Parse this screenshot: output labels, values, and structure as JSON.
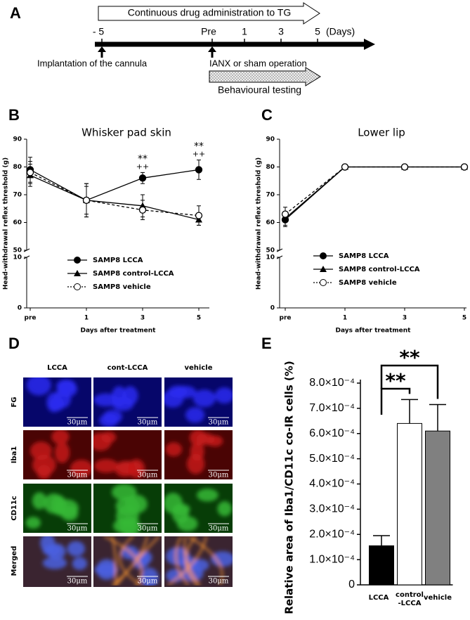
{
  "timeline": {
    "panel": "A",
    "top_arrow": "Continuous drug administration to TG",
    "ticks": [
      "- 5",
      "Pre",
      "1",
      "3",
      "5"
    ],
    "unit": "(Days)",
    "events": [
      "Implantation of the cannula",
      "IANX or sham operation"
    ],
    "bottom_arrow": "Behavioural testing"
  },
  "micrographs": {
    "panel": "D",
    "columns": [
      "LCCA",
      "cont-LCCA",
      "vehicle"
    ],
    "rows": [
      "FG",
      "Iba1",
      "CD11c",
      "Merged"
    ],
    "scale_bar": "30μm"
  },
  "chart_data": [
    {
      "type": "line",
      "panel": "B",
      "title": "Whisker pad skin",
      "xlabel": "Days after treatment",
      "ylabel": "Head-withdrawal reflex threshold (g)",
      "categories": [
        "pre",
        "1",
        "3",
        "5"
      ],
      "ylim": [
        0,
        90
      ],
      "ybreak": [
        10,
        50
      ],
      "yticks": [
        0,
        10,
        50,
        60,
        70,
        80,
        90
      ],
      "legend": "lower-left",
      "series": [
        {
          "name": "SAMP8 LCCA",
          "color": "#000000",
          "marker": "circle",
          "dash": false,
          "values": [
            79,
            68,
            76,
            79
          ],
          "errors": [
            4.5,
            6,
            2,
            3.5
          ]
        },
        {
          "name": "SAMP8 control-LCCA",
          "color": "#000000",
          "marker": "triangle",
          "dash": false,
          "values": [
            77,
            68,
            66,
            61
          ],
          "errors": [
            4,
            6,
            4,
            2
          ]
        },
        {
          "name": "SAMP8 vehicle",
          "color": "#000000",
          "marker": "open-circle",
          "dash": true,
          "values": [
            78,
            68,
            64.5,
            62.5
          ],
          "errors": [
            4,
            5,
            3.5,
            3.5
          ]
        }
      ],
      "annotations": [
        {
          "category": "3",
          "text": "**"
        },
        {
          "category": "3",
          "text": "++"
        },
        {
          "category": "5",
          "text": "**"
        },
        {
          "category": "5",
          "text": "++"
        }
      ]
    },
    {
      "type": "line",
      "panel": "C",
      "title": "Lower lip",
      "xlabel": "Days after treatment",
      "ylabel": "Head-withdrawal reflex threshold (g)",
      "categories": [
        "pre",
        "1",
        "3",
        "5"
      ],
      "ylim": [
        0,
        90
      ],
      "ybreak": [
        10,
        50
      ],
      "yticks": [
        0,
        10,
        50,
        60,
        70,
        80,
        90
      ],
      "legend": "lower-center",
      "series": [
        {
          "name": "SAMP8 LCCA",
          "color": "#000000",
          "marker": "circle",
          "dash": false,
          "values": [
            61,
            80,
            80,
            80
          ],
          "errors": [
            2.5,
            null,
            null,
            null
          ]
        },
        {
          "name": "SAMP8 control-LCCA",
          "color": "#000000",
          "marker": "triangle",
          "dash": false,
          "values": [
            61.5,
            80,
            80,
            80
          ],
          "errors": [
            2.5,
            null,
            null,
            null
          ]
        },
        {
          "name": "SAMP8 vehicle",
          "color": "#000000",
          "marker": "open-circle",
          "dash": true,
          "values": [
            63,
            80,
            80,
            80
          ],
          "errors": [
            2.5,
            null,
            null,
            null
          ]
        }
      ],
      "annotations": []
    },
    {
      "type": "bar",
      "panel": "E",
      "ylabel": "Relative area of Iba1/CD11c co-IR cells (%)",
      "categories": [
        "LCCA",
        [
          "control",
          "-LCCA"
        ],
        "vehicle"
      ],
      "colors": [
        "#000000",
        "#ffffff",
        "#808080"
      ],
      "values": [
        0.000155,
        0.00064,
        0.00061
      ],
      "errors": [
        4e-05,
        9.5e-05,
        0.000105
      ],
      "ylim": [
        0,
        0.0008
      ],
      "yticks": [
        0,
        {
          "value": 0.0001,
          "label": "1.0×10⁻⁴"
        },
        {
          "value": 0.0002,
          "label": "2.0×10⁻⁴"
        },
        {
          "value": 0.0003,
          "label": "3.0×10⁻⁴"
        },
        {
          "value": 0.0004,
          "label": "4.0×10⁻⁴"
        },
        {
          "value": 0.0005,
          "label": "5.0×10⁻⁴"
        },
        {
          "value": 0.0006,
          "label": "6.0×10⁻⁴"
        },
        {
          "value": 0.0007,
          "label": "7.0×10⁻⁴"
        },
        {
          "value": 0.0008,
          "label": "8.0×10⁻⁴"
        }
      ],
      "annotations": [
        {
          "text": "**"
        },
        {
          "text": "**"
        }
      ]
    }
  ]
}
